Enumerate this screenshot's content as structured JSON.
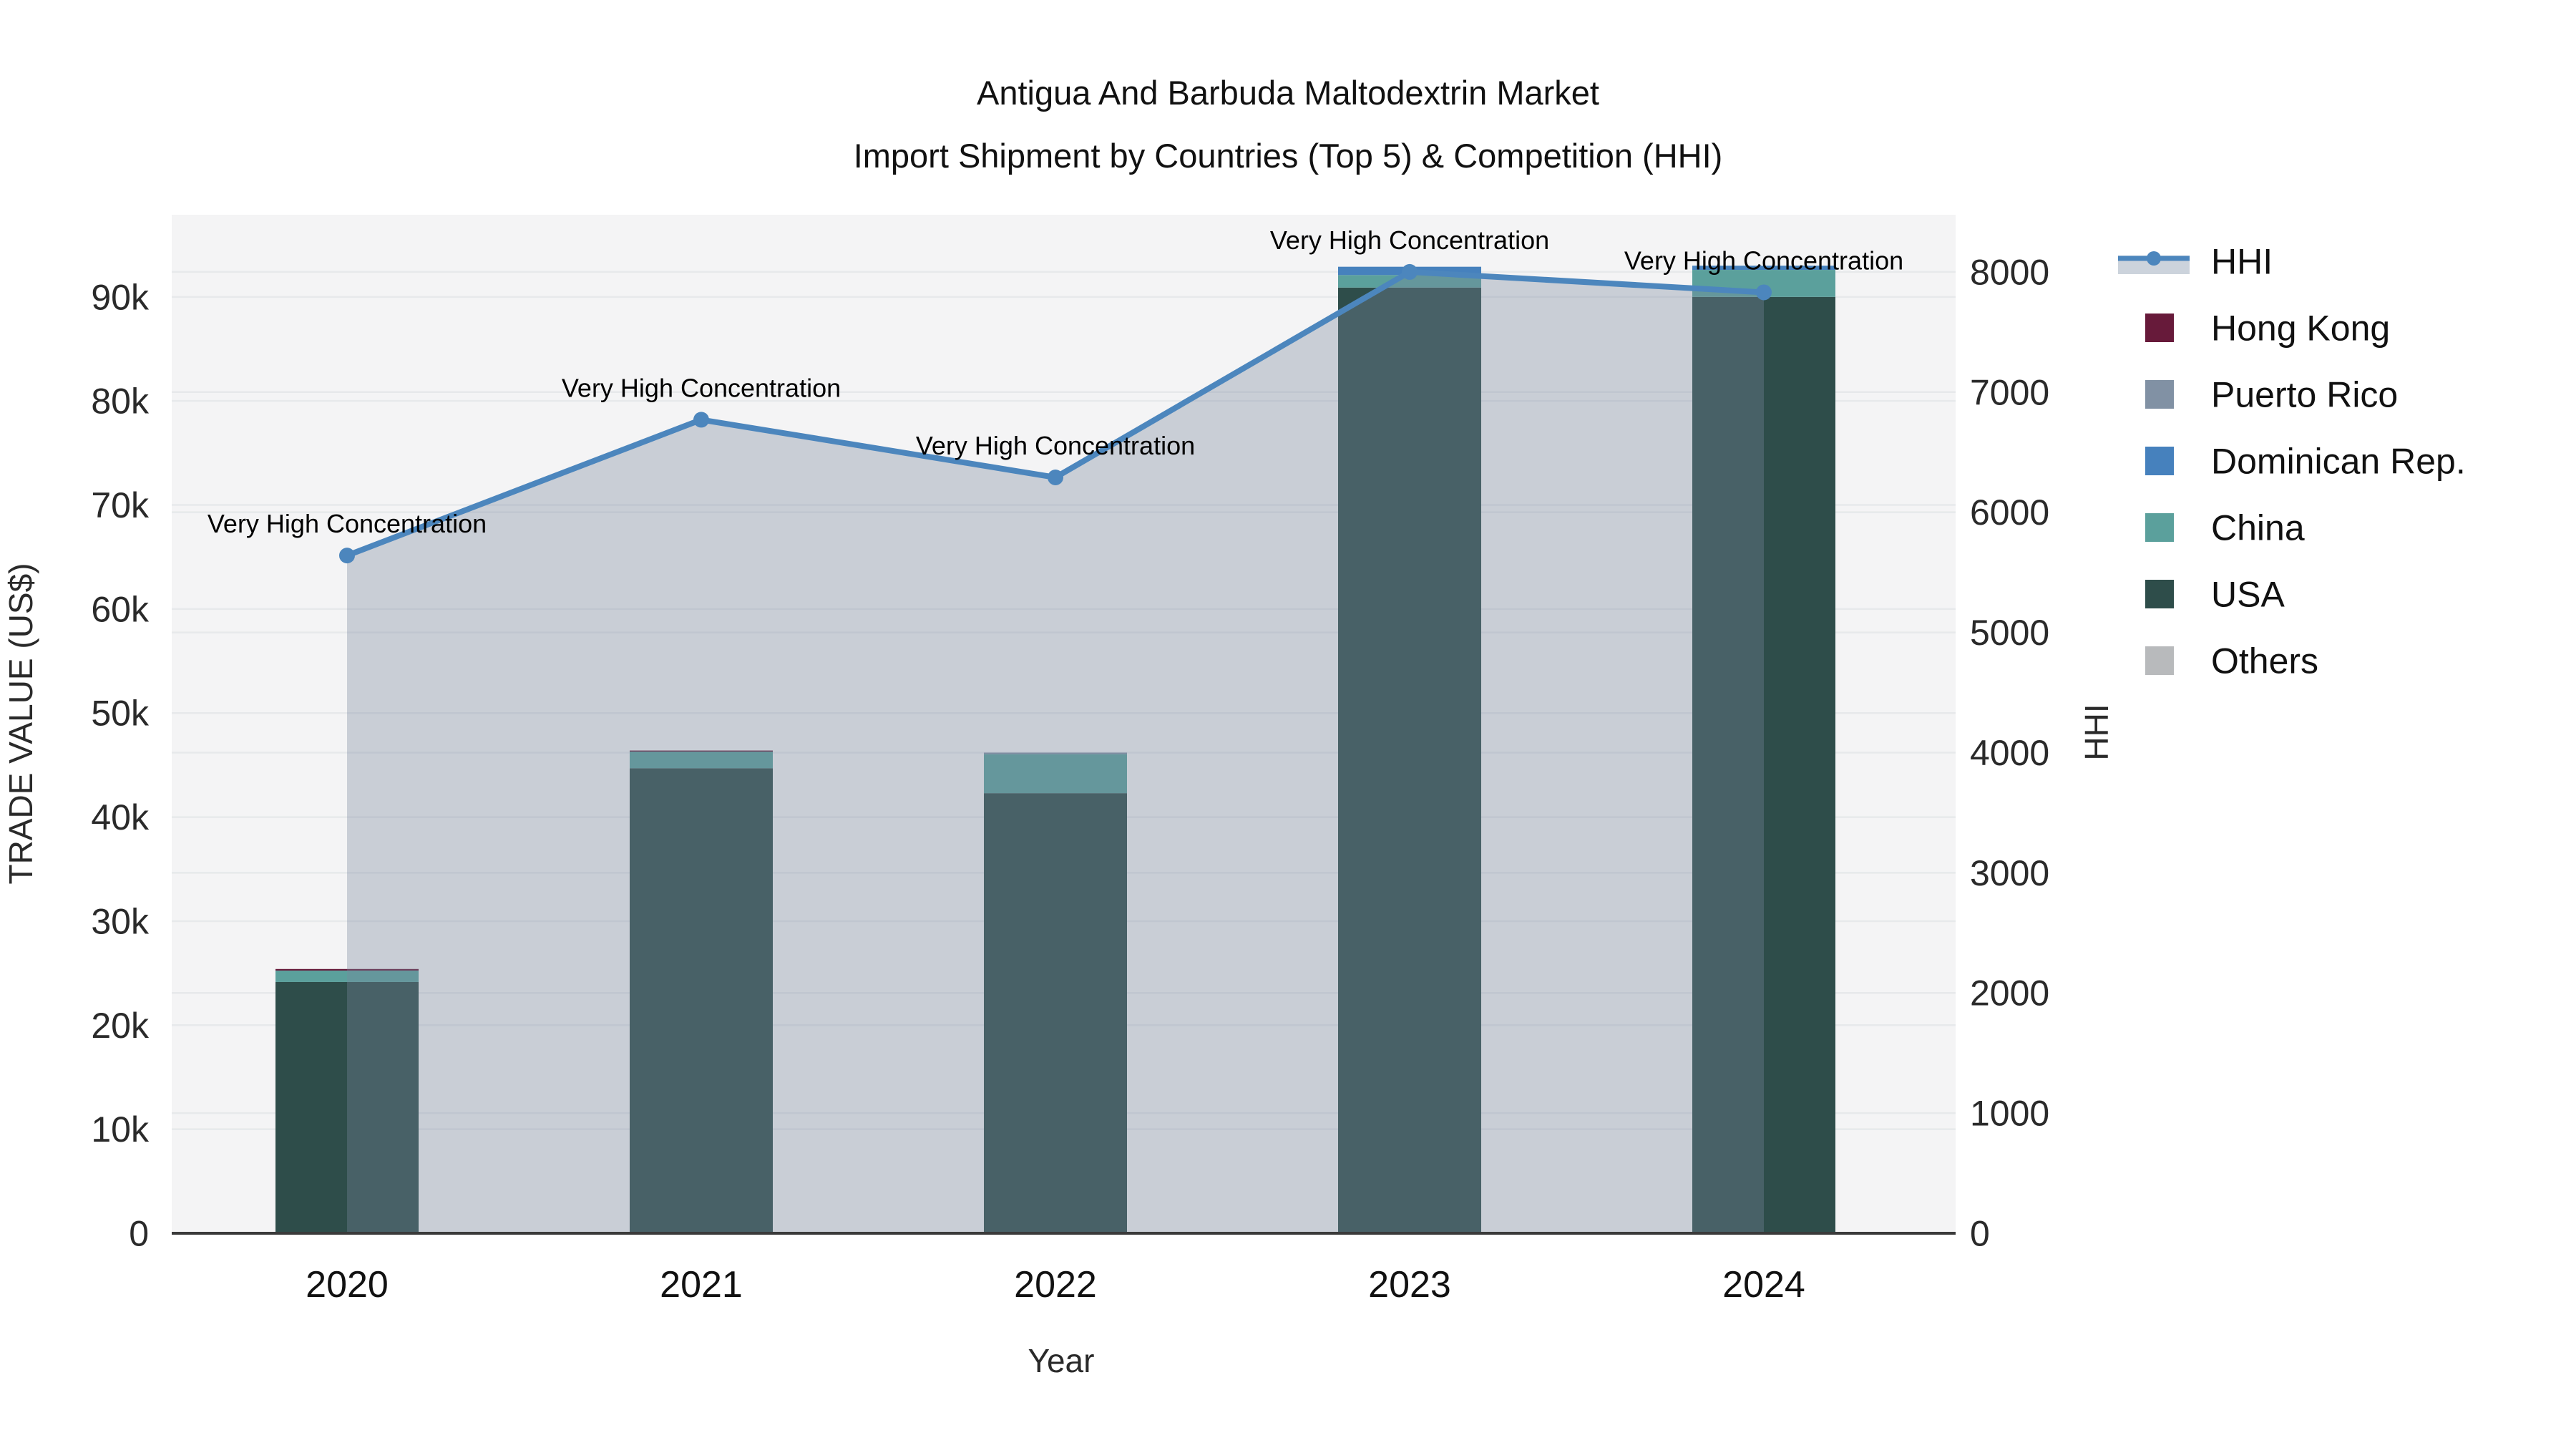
{
  "title": {
    "line1": "Antigua And Barbuda Maltodextrin Market",
    "line2": "Import Shipment by Countries (Top 5) & Competition (HHI)"
  },
  "chart_data": {
    "type": "bar",
    "subtype": "stacked-bars-with-hhi-line-and-area",
    "categories": [
      "2020",
      "2021",
      "2022",
      "2023",
      "2024"
    ],
    "series": [
      {
        "name": "USA",
        "color": "#2e4d4a",
        "values": [
          24150,
          44700,
          42300,
          90900,
          90000
        ]
      },
      {
        "name": "China",
        "color": "#5ba09c",
        "values": [
          1100,
          1600,
          3750,
          1200,
          2600
        ]
      },
      {
        "name": "Dominican Rep.",
        "color": "#4681bd",
        "values": [
          0,
          0,
          0,
          800,
          400
        ]
      },
      {
        "name": "Puerto Rico",
        "color": "#8191a4",
        "values": [
          0,
          0,
          150,
          0,
          0
        ]
      },
      {
        "name": "Hong Kong",
        "color": "#671a3a",
        "values": [
          150,
          100,
          0,
          0,
          0
        ]
      },
      {
        "name": "Others",
        "color": "#b8babc",
        "values": [
          0,
          0,
          0,
          0,
          0
        ]
      }
    ],
    "bar_totals": [
      25400,
      46400,
      46200,
      92900,
      93000
    ],
    "line": {
      "name": "HHI",
      "color": "#4c86bd",
      "area_fill": "rgba(121,135,159,0.35)",
      "values": [
        5640,
        6770,
        6290,
        8000,
        7830
      ]
    },
    "annotations": [
      "Very High Concentration",
      "Very High Concentration",
      "Very High Concentration",
      "Very High Concentration",
      "Very High Concentration"
    ],
    "y_left": {
      "label": "TRADE VALUE (US$)",
      "ticks": [
        0,
        10000,
        20000,
        30000,
        40000,
        50000,
        60000,
        70000,
        80000,
        90000
      ],
      "tick_labels": [
        "0",
        "10k",
        "20k",
        "30k",
        "40k",
        "50k",
        "60k",
        "70k",
        "80k",
        "90k"
      ],
      "max": 97900
    },
    "y_right": {
      "label": "HHI",
      "ticks": [
        0,
        1000,
        2000,
        3000,
        4000,
        5000,
        6000,
        7000,
        8000
      ],
      "tick_labels": [
        "0",
        "1000",
        "2000",
        "3000",
        "4000",
        "5000",
        "6000",
        "7000",
        "8000"
      ],
      "max": 8476
    },
    "x_axis": {
      "label": "Year"
    },
    "legend": [
      {
        "name": "HHI",
        "type": "line",
        "color": "#4c86bd",
        "band": "#ccd3dc"
      },
      {
        "name": "Hong Kong",
        "type": "swatch",
        "color": "#671a3a"
      },
      {
        "name": "Puerto Rico",
        "type": "swatch",
        "color": "#8191a4"
      },
      {
        "name": "Dominican Rep.",
        "type": "swatch",
        "color": "#4681bd"
      },
      {
        "name": "China",
        "type": "swatch",
        "color": "#5ba09c"
      },
      {
        "name": "USA",
        "type": "swatch",
        "color": "#2e4d4a"
      },
      {
        "name": "Others",
        "type": "swatch",
        "color": "#b8babc"
      }
    ]
  },
  "colors": {
    "plot_bg": "#f4f4f5",
    "grid": "#e7e9eb",
    "axis_line": "#3a3a3a"
  }
}
